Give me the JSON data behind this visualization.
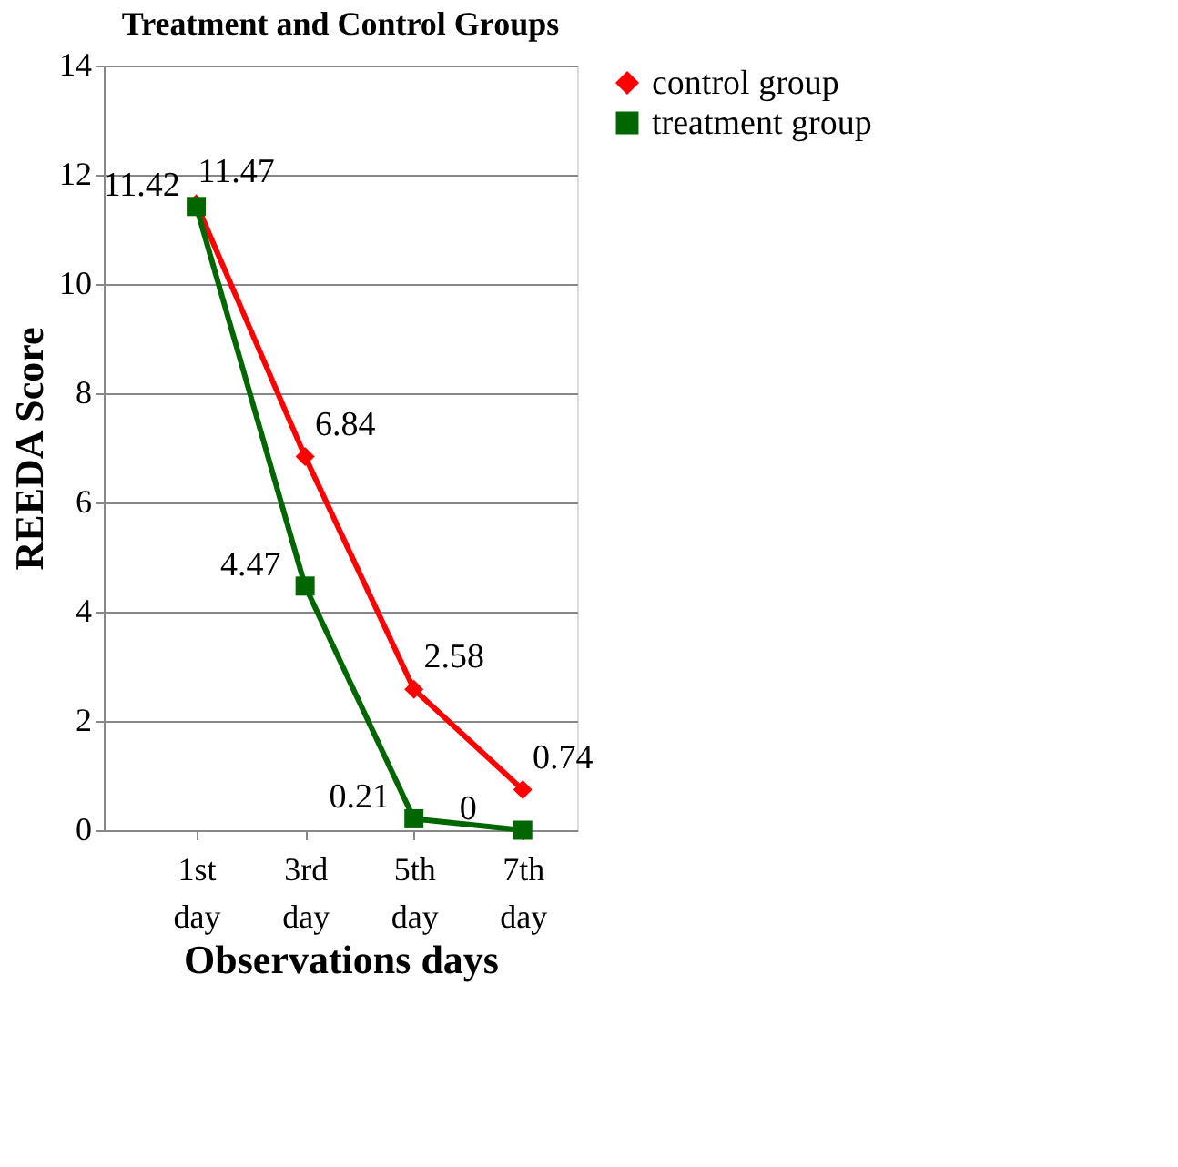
{
  "chart_data": {
    "type": "line",
    "title": "Treatment and Control Groups",
    "xlabel": "Observations days",
    "ylabel": "REEDA Score",
    "categories": [
      "1st day",
      "3rd day",
      "5th day",
      "7th day"
    ],
    "series": [
      {
        "name": "control group",
        "color": "#ff0000",
        "marker": "diamond",
        "values": [
          11.47,
          6.84,
          2.58,
          0.74
        ]
      },
      {
        "name": "treatment group",
        "color": "#006600",
        "marker": "square",
        "values": [
          11.42,
          4.47,
          0.21,
          0
        ]
      }
    ],
    "ylim": [
      0,
      14
    ],
    "yticks": [
      0,
      2,
      4,
      6,
      8,
      10,
      12,
      14
    ],
    "grid": "y",
    "legend": "right",
    "data_labels": true,
    "line_style": "solid"
  }
}
